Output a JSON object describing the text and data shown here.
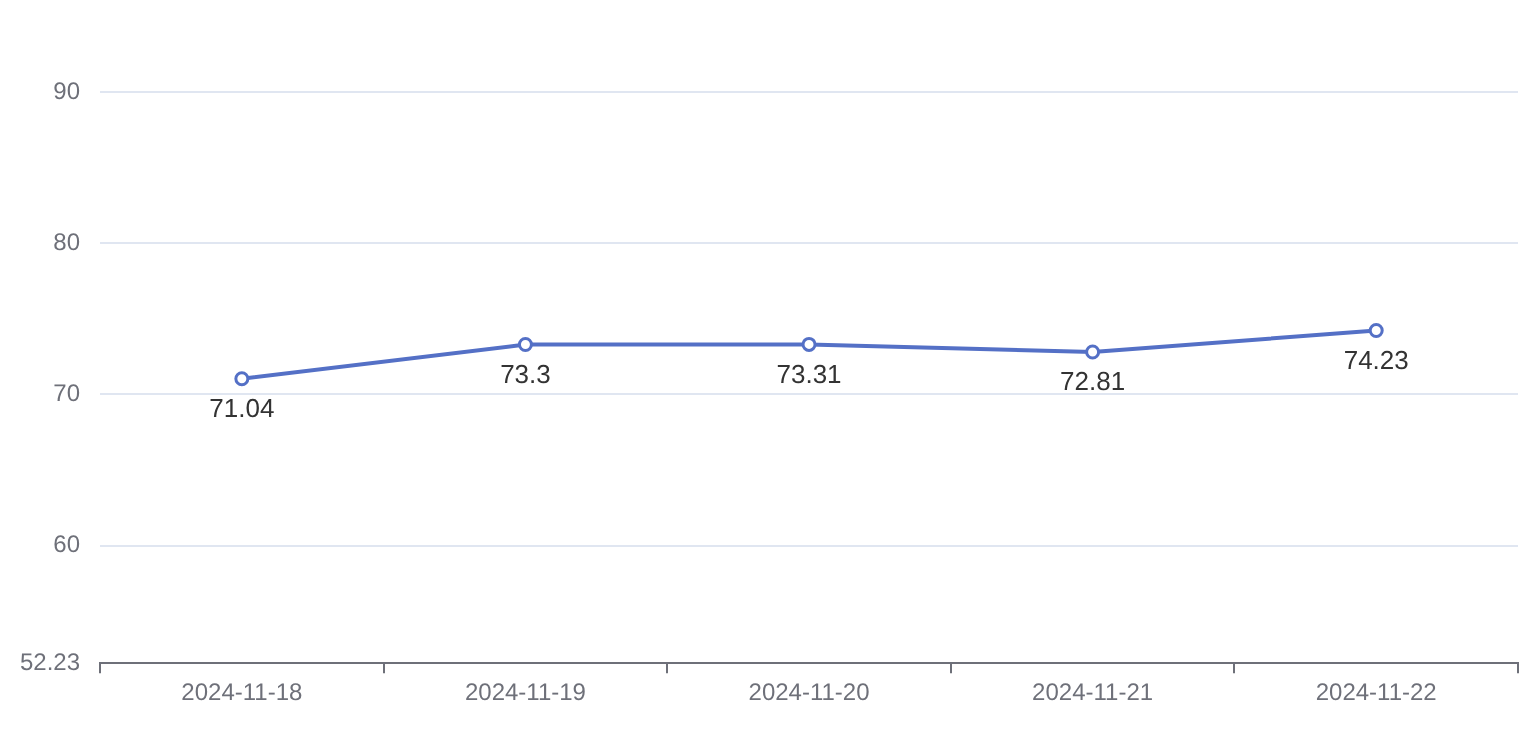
{
  "chart_data": {
    "type": "line",
    "categories": [
      "2024-11-18",
      "2024-11-19",
      "2024-11-20",
      "2024-11-21",
      "2024-11-22"
    ],
    "series": [
      {
        "color": "#5470c6",
        "values": [
          71.04,
          73.3,
          73.31,
          72.81,
          74.23
        ]
      }
    ],
    "ylim": [
      52.23,
      90
    ],
    "yticks": [
      52.23,
      60,
      70,
      80,
      90
    ],
    "grid": "y",
    "marker": "circle",
    "line_style": "solid",
    "data_labels": true,
    "legend": false
  }
}
